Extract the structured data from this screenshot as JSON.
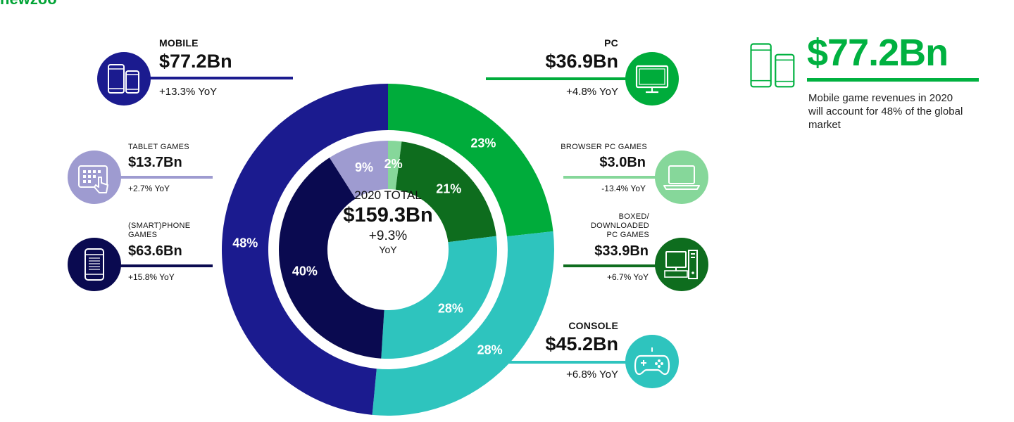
{
  "brand": "newzoo",
  "center": {
    "title": "2020 TOTAL",
    "value": "$159.3Bn",
    "growth": "+9.3%",
    "growth_unit": "YoY"
  },
  "categories": {
    "mobile": {
      "label": "MOBILE",
      "value": "$77.2Bn",
      "yoy": "+13.3% YoY",
      "color": "#1b1b8f"
    },
    "pc": {
      "label": "PC",
      "value": "$36.9Bn",
      "yoy": "+4.8% YoY",
      "color": "#00ac3b"
    },
    "console": {
      "label": "CONSOLE",
      "value": "$45.2Bn",
      "yoy": "+6.8% YoY",
      "color": "#2ec4be"
    }
  },
  "subcategories": {
    "tablet": {
      "label": "TABLET GAMES",
      "value": "$13.7Bn",
      "yoy": "+2.7% YoY",
      "color": "#9e9bd0"
    },
    "smartphone": {
      "label": "(SMART)PHONE GAMES",
      "value": "$63.6Bn",
      "yoy": "+15.8% YoY",
      "color": "#0a0a50"
    },
    "browser": {
      "label": "BROWSER PC GAMES",
      "value": "$3.0Bn",
      "yoy": "-13.4% YoY",
      "color": "#86d79a"
    },
    "boxed": {
      "label": "BOXED/ DOWNLOADED PC GAMES",
      "value": "$33.9Bn",
      "yoy": "+6.7% YoY",
      "color": "#0e6d1e"
    }
  },
  "callout": {
    "value": "$77.2Bn",
    "text": "Mobile game revenues in 2020 will account for 48% of the global market",
    "color": "#00b140"
  },
  "icons": {
    "mobile": "phone-tablet-icon",
    "tablet": "tablet-touch-icon",
    "smartphone": "smartphone-icon",
    "pc": "monitor-icon",
    "browser": "laptop-icon",
    "boxed": "desktop-computer-icon",
    "console": "gamepad-icon"
  },
  "chart_data": {
    "type": "pie",
    "outer_ring": {
      "categories": [
        "PC",
        "Console",
        "Mobile"
      ],
      "values": [
        23,
        28,
        48
      ],
      "labels": [
        "23%",
        "28%",
        "48%"
      ],
      "colors": [
        "#00ac3b",
        "#2ec4be",
        "#1b1b8f"
      ]
    },
    "inner_ring": {
      "categories": [
        "Browser PC Games",
        "Boxed/Downloaded PC Games",
        "Console",
        "(Smart)phone Games",
        "Tablet Games"
      ],
      "values": [
        2,
        21,
        28,
        40,
        9
      ],
      "labels": [
        "2%",
        "21%",
        "28%",
        "40%",
        "9%"
      ],
      "colors": [
        "#86d79a",
        "#0e6d1e",
        "#2ec4be",
        "#0a0a50",
        "#9e9bd0"
      ]
    },
    "start_angle_deg": 0,
    "direction": "clockwise"
  }
}
